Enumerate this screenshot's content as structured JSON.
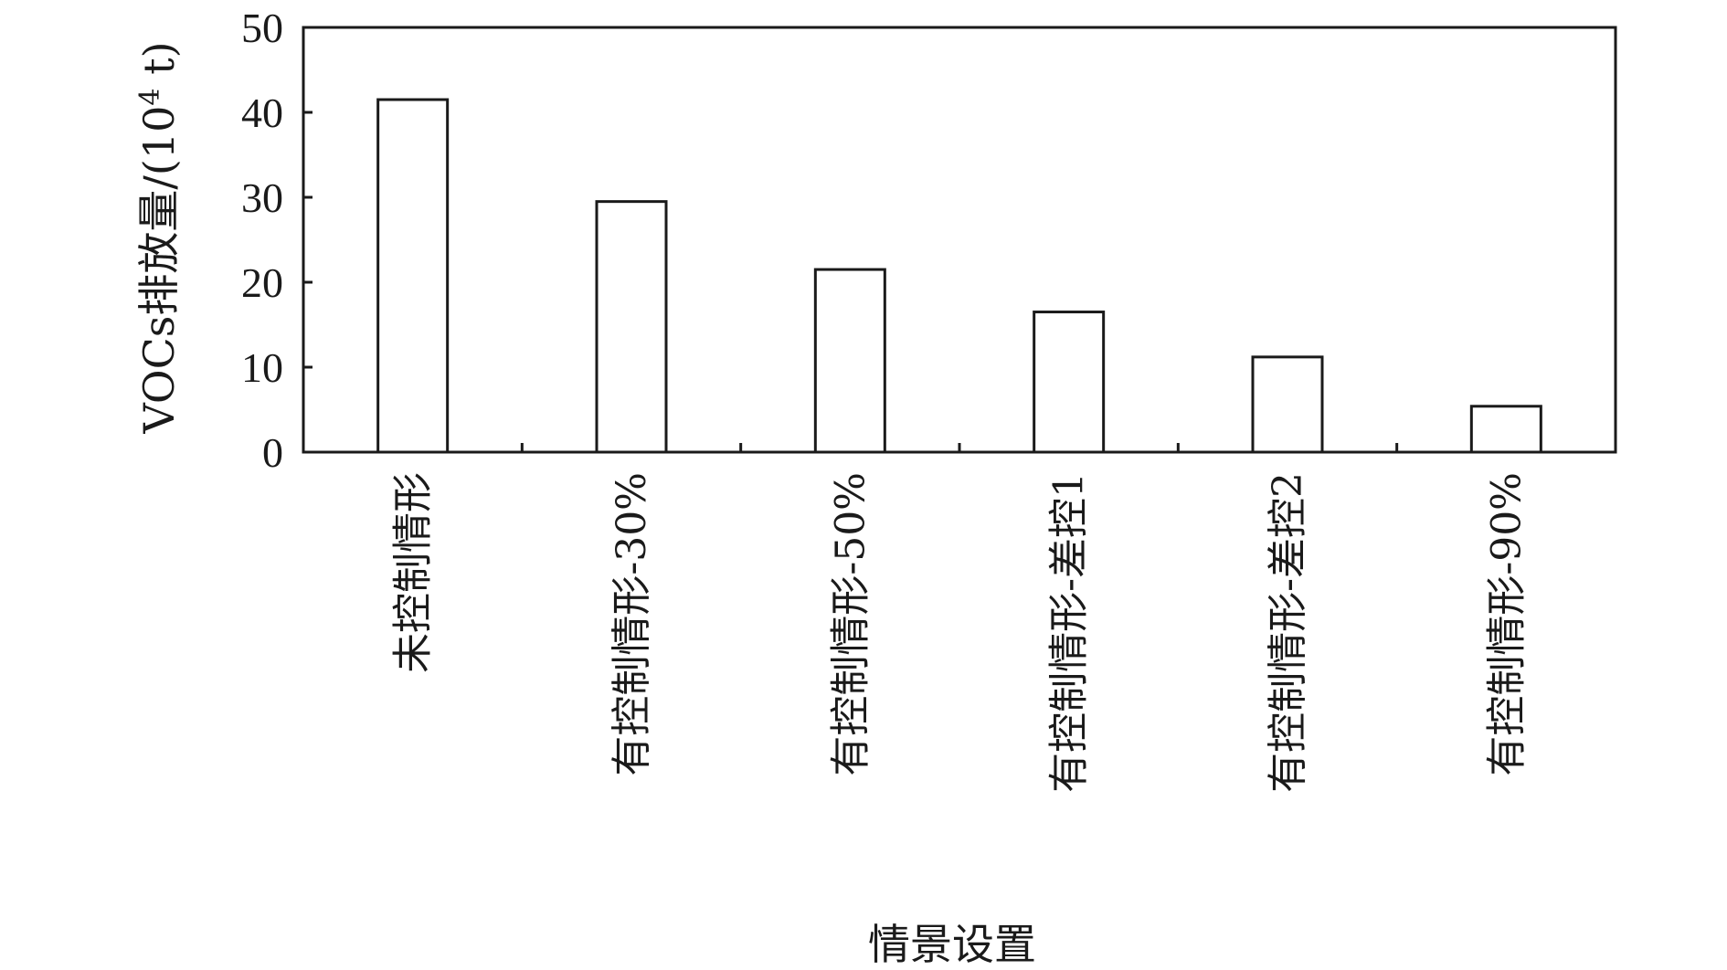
{
  "chart_data": {
    "type": "bar",
    "categories": [
      "未控制情形",
      "有控制情形-30%",
      "有控制情形-50%",
      "有控制情形-差控1",
      "有控制情形-差控2",
      "有控制情形-90%"
    ],
    "values": [
      41.5,
      29.5,
      21.5,
      16.5,
      11.2,
      5.4
    ],
    "xlabel": "情景设置",
    "ylabel_prefix": "VOCs排放量/(10",
    "ylabel_sup": "4",
    "ylabel_suffix": " t)",
    "ylim": [
      0,
      50
    ],
    "yticks": [
      0,
      10,
      20,
      30,
      40,
      50
    ],
    "grid": false,
    "legend": "none",
    "colors": {
      "bar_fill": "#ffffff",
      "bar_stroke": "#1a1a1a",
      "text": "#1a1a1a"
    }
  }
}
